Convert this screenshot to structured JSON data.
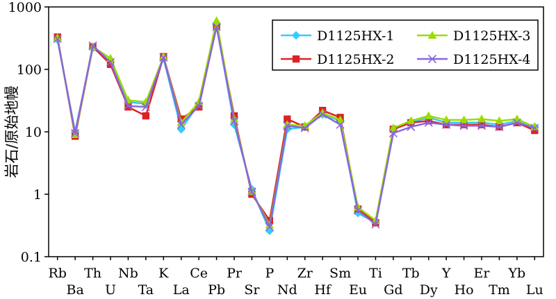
{
  "chart_data": {
    "type": "line",
    "ylabel": "岩石/原始地幔",
    "xlabel": "",
    "y_scale": "log",
    "ylim": [
      0.1,
      1000
    ],
    "y_ticks": [
      "0.1",
      "1",
      "10",
      "100",
      "1000"
    ],
    "grid": false,
    "legend_position": "top-right",
    "categories": [
      "Rb",
      "Ba",
      "Th",
      "U",
      "Nb",
      "Ta",
      "K",
      "La",
      "Ce",
      "Pb",
      "Pr",
      "Sr",
      "P",
      "Nd",
      "Zr",
      "Hf",
      "Sm",
      "Eu",
      "Ti",
      "Gd",
      "Tb",
      "Dy",
      "Y",
      "Ho",
      "Er",
      "Tm",
      "Yb",
      "Lu"
    ],
    "series": [
      {
        "name": "D1125HX-1",
        "color": "#33ccff",
        "marker": "diamond",
        "values": [
          300,
          10,
          220,
          135,
          30,
          28,
          150,
          11,
          28,
          520,
          13,
          1.2,
          0.26,
          11,
          12,
          19,
          15,
          0.5,
          0.35,
          11,
          14,
          17,
          14,
          14,
          14,
          13,
          15,
          12
        ]
      },
      {
        "name": "D1125HX-2",
        "color": "#dd2222",
        "marker": "square",
        "values": [
          330,
          8.5,
          230,
          120,
          25,
          18,
          160,
          16,
          25,
          500,
          18,
          1.0,
          0.38,
          16,
          12,
          22,
          17,
          0.58,
          0.35,
          11,
          14,
          15,
          13,
          13,
          13,
          12,
          14,
          10.5
        ]
      },
      {
        "name": "D1125HX-3",
        "color": "#99dd00",
        "marker": "triangle",
        "values": [
          320,
          9,
          230,
          150,
          32,
          30,
          160,
          14,
          30,
          600,
          16,
          1.1,
          0.32,
          13,
          12.5,
          20,
          15.5,
          0.62,
          0.38,
          11.5,
          15,
          18,
          15.5,
          15.5,
          16,
          15,
          16,
          12
        ]
      },
      {
        "name": "D1125HX-4",
        "color": "#8866dd",
        "marker": "x",
        "values": [
          310,
          9.5,
          240,
          130,
          26,
          25,
          155,
          13,
          26,
          480,
          15,
          1.1,
          0.3,
          12.5,
          11.5,
          19,
          13,
          0.55,
          0.33,
          9.5,
          12,
          14,
          13,
          12.5,
          12.5,
          12,
          14,
          11.5
        ]
      }
    ]
  }
}
